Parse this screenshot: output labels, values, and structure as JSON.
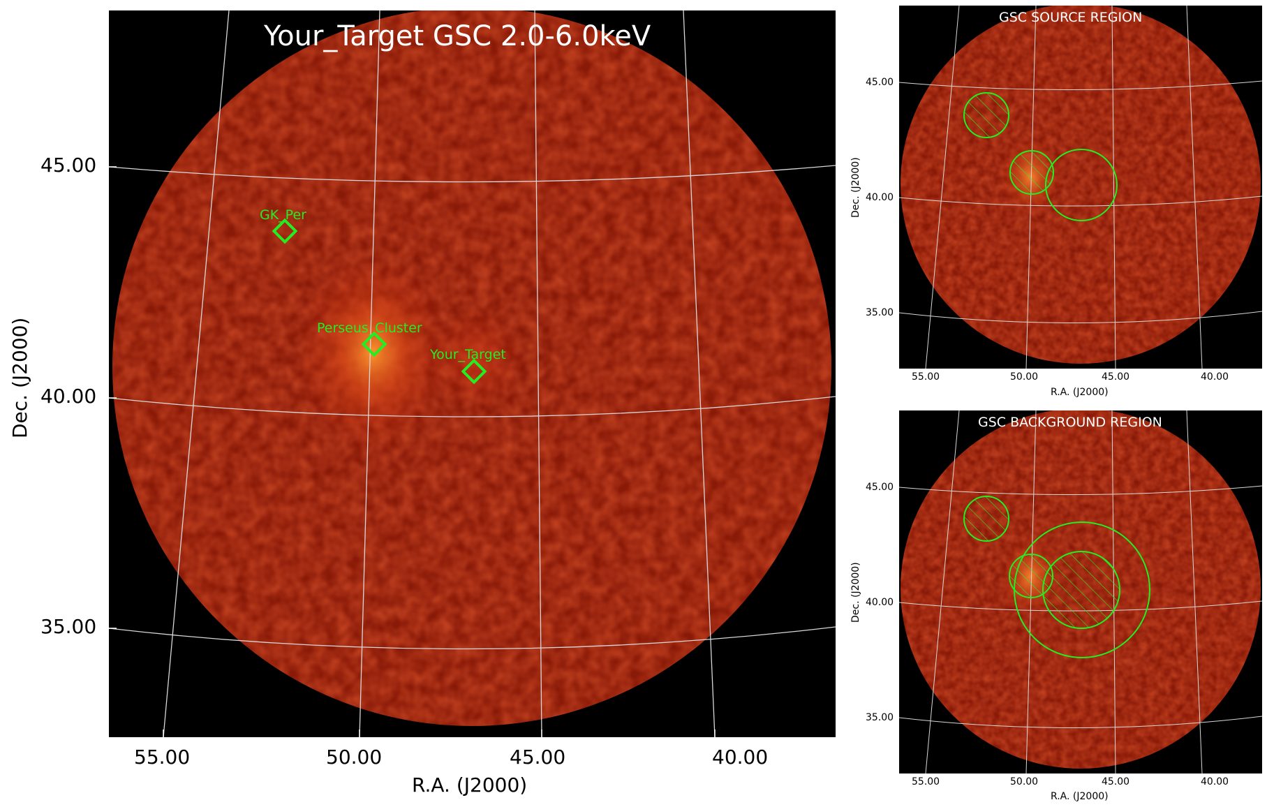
{
  "main_panel": {
    "title": "Your_Target GSC 2.0-6.0keV",
    "xlabel": "R.A. (J2000)",
    "ylabel": "Dec. (J2000)",
    "xticks": [
      "55.00",
      "50.00",
      "45.00",
      "40.00"
    ],
    "yticks": [
      "45.00",
      "40.00",
      "35.00"
    ],
    "sources": [
      {
        "name": "GK_Per"
      },
      {
        "name": "Perseus_Cluster"
      },
      {
        "name": "Your_Target"
      }
    ],
    "marker_color": "#22ee22"
  },
  "source_panel": {
    "title": "GSC SOURCE REGION",
    "xlabel": "R.A. (J2000)",
    "ylabel": "Dec. (J2000)",
    "xticks": [
      "55.00",
      "50.00",
      "45.00",
      "40.00"
    ],
    "yticks": [
      "45.00",
      "40.00",
      "35.00"
    ]
  },
  "background_panel": {
    "title": "GSC BACKGROUND REGION",
    "xlabel": "R.A. (J2000)",
    "ylabel": "Dec. (J2000)",
    "xticks": [
      "55.00",
      "50.00",
      "45.00",
      "40.00"
    ],
    "yticks": [
      "45.00",
      "40.00",
      "35.00"
    ]
  },
  "colors": {
    "image_base": "#7a1808",
    "grid": "#d8d8d8",
    "region": "#22ee22",
    "background": "#000000"
  }
}
